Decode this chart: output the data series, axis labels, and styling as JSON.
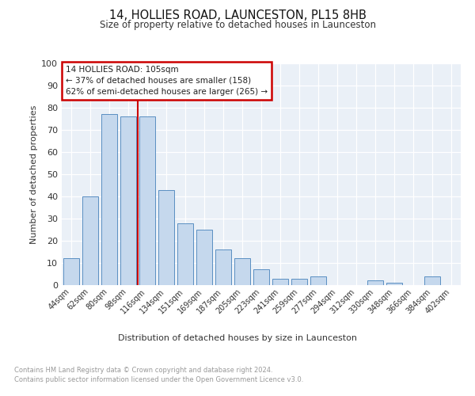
{
  "title": "14, HOLLIES ROAD, LAUNCESTON, PL15 8HB",
  "subtitle": "Size of property relative to detached houses in Launceston",
  "xlabel": "Distribution of detached houses by size in Launceston",
  "ylabel": "Number of detached properties",
  "categories": [
    "44sqm",
    "62sqm",
    "80sqm",
    "98sqm",
    "116sqm",
    "134sqm",
    "151sqm",
    "169sqm",
    "187sqm",
    "205sqm",
    "223sqm",
    "241sqm",
    "259sqm",
    "277sqm",
    "294sqm",
    "312sqm",
    "330sqm",
    "348sqm",
    "366sqm",
    "384sqm",
    "402sqm"
  ],
  "values": [
    12,
    40,
    77,
    76,
    76,
    43,
    28,
    25,
    16,
    12,
    7,
    3,
    3,
    4,
    0,
    0,
    2,
    1,
    0,
    4,
    0
  ],
  "bar_color": "#c5d8ed",
  "bar_edge_color": "#5a8fc2",
  "vline_x": 3.5,
  "vline_color": "#cc0000",
  "annotation_title": "14 HOLLIES ROAD: 105sqm",
  "annotation_line1": "← 37% of detached houses are smaller (158)",
  "annotation_line2": "62% of semi-detached houses are larger (265) →",
  "annotation_box_color": "#cc0000",
  "ylim": [
    0,
    100
  ],
  "yticks": [
    0,
    10,
    20,
    30,
    40,
    50,
    60,
    70,
    80,
    90,
    100
  ],
  "footer1": "Contains HM Land Registry data © Crown copyright and database right 2024.",
  "footer2": "Contains public sector information licensed under the Open Government Licence v3.0.",
  "bg_color": "#eaf0f7"
}
